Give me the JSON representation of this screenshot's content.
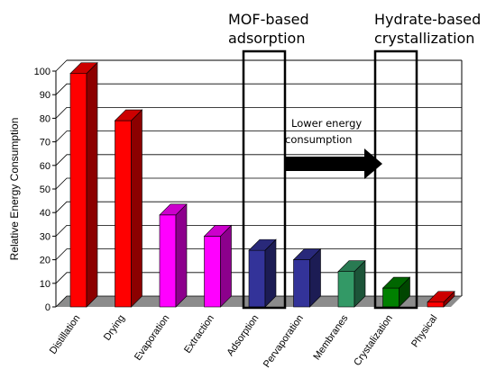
{
  "chart_data": {
    "type": "bar",
    "style": "3d",
    "ylabel": "Relative Energy Consumption",
    "ylim": [
      0,
      100
    ],
    "yticks": [
      0,
      10,
      20,
      30,
      40,
      50,
      60,
      70,
      80,
      90,
      100
    ],
    "grid": true,
    "categories": [
      "Distillation",
      "Drying",
      "Evaporation",
      "Extraction",
      "Adsorption",
      "Pervaporation",
      "Membranes",
      "Crystalization",
      "Physical"
    ],
    "values": [
      99,
      79,
      39,
      30,
      24,
      20,
      15,
      8,
      2
    ],
    "colors": [
      "#ff0000",
      "#ff0000",
      "#ff00ff",
      "#ff00ff",
      "#333399",
      "#333399",
      "#339966",
      "#008000",
      "#ff0000"
    ],
    "annotations": {
      "mof_box": {
        "line1": "MOF-based",
        "line2": "adsorption",
        "highlights": "Adsorption"
      },
      "hydrate_box": {
        "line1": "Hydrate-based",
        "line2": "crystallization",
        "highlights": "Crystalization"
      },
      "arrow": {
        "line1": "Lower energy",
        "line2": "consumption",
        "from": "Adsorption",
        "to": "Crystalization"
      }
    }
  }
}
